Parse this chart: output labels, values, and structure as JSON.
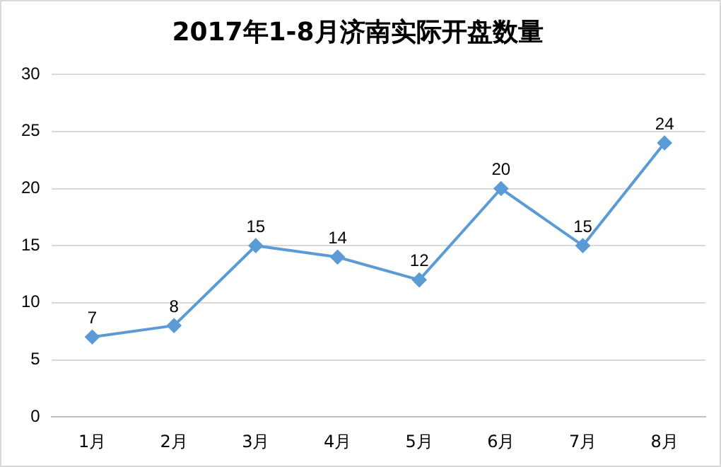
{
  "chart_data": {
    "type": "line",
    "title": "2017年1-8月济南实际开盘数量",
    "categories": [
      "1月",
      "2月",
      "3月",
      "4月",
      "5月",
      "6月",
      "7月",
      "8月"
    ],
    "series": [
      {
        "color": "#5b9bd5",
        "values": [
          7,
          8,
          15,
          14,
          12,
          20,
          15,
          24
        ]
      }
    ],
    "ylim": [
      0,
      30
    ],
    "yticks": [
      0,
      5,
      10,
      15,
      20,
      25,
      30
    ],
    "grid": "y",
    "marker": "diamond",
    "line_style": "solid",
    "data_labels": true
  }
}
